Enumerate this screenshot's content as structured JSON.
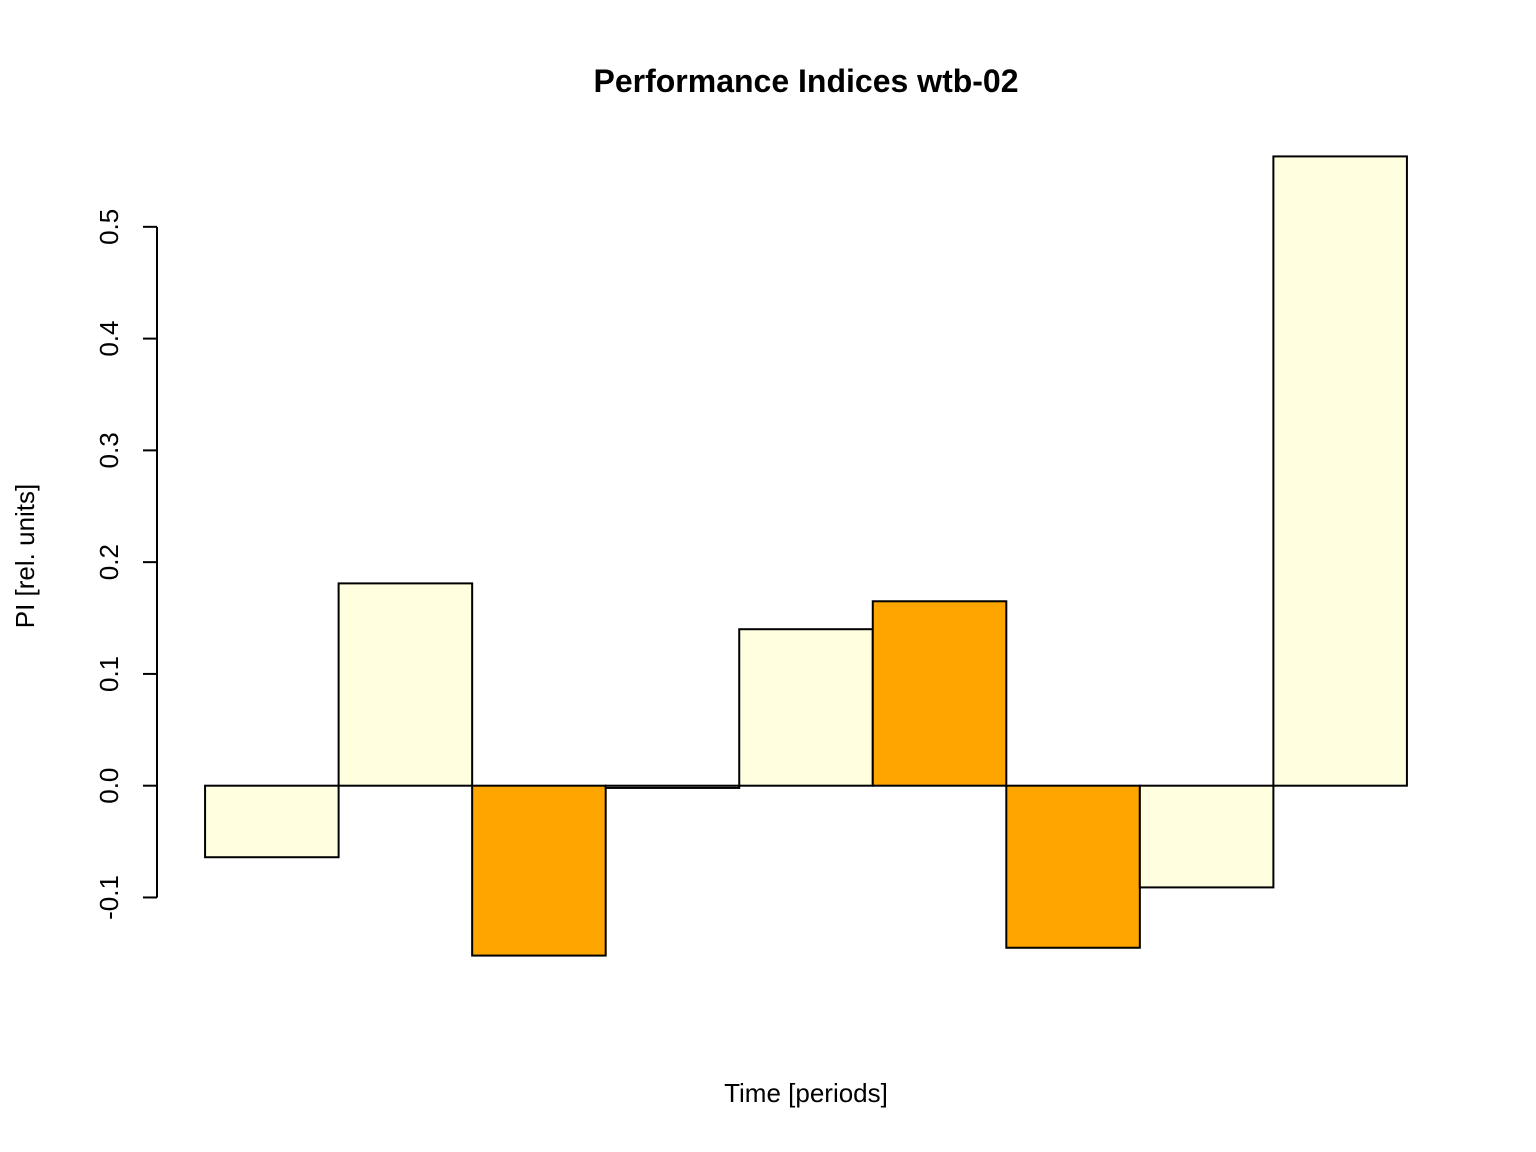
{
  "chart_data": {
    "type": "bar",
    "title": "Performance Indices wtb-02",
    "x_label": "Time [periods]",
    "y_label": "PI [rel. units]",
    "categories": [
      null,
      null,
      null,
      null,
      null,
      null,
      null,
      null,
      null
    ],
    "values": [
      -0.064,
      0.181,
      -0.152,
      -0.002,
      0.14,
      0.165,
      -0.145,
      -0.091,
      0.563
    ],
    "colors": [
      "#FFFFE0",
      "#FFFFE0",
      "#FFA500",
      "#FFFFE0",
      "#FFFFE0",
      "#FFA500",
      "#FFA500",
      "#FFFFE0",
      "#FFFFE0"
    ],
    "ylim": [
      -0.181,
      0.592
    ],
    "yticks": [
      -0.1,
      {
        "value": 0,
        "label": "0.0"
      },
      0.1,
      0.2,
      0.3,
      0.4,
      0.5
    ]
  }
}
